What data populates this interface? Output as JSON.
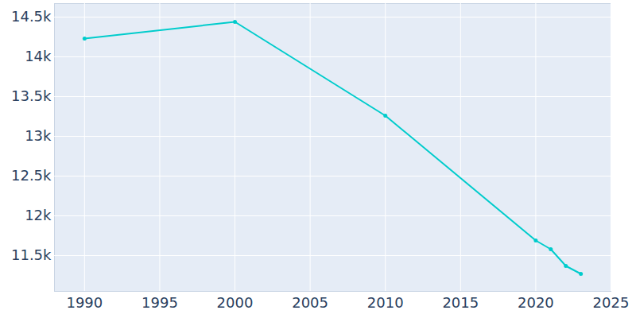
{
  "chart_data": {
    "type": "line",
    "x": [
      1990,
      2000,
      2010,
      2020,
      2021,
      2022,
      2023
    ],
    "values": [
      14230,
      14440,
      13260,
      11690,
      11580,
      11370,
      11270
    ],
    "color": "#00cccc",
    "marker": "circle",
    "xlim": [
      1988,
      2025
    ],
    "xticks": [
      1990,
      1995,
      2000,
      2005,
      2010,
      2015,
      2020,
      2025
    ],
    "ylim": [
      11050,
      14670
    ],
    "yticks": [
      {
        "value": 11500,
        "label": "11.5k"
      },
      {
        "value": 12000,
        "label": "12k"
      },
      {
        "value": 12500,
        "label": "12.5k"
      },
      {
        "value": 13000,
        "label": "13k"
      },
      {
        "value": 13500,
        "label": "13.5k"
      },
      {
        "value": 14000,
        "label": "14k"
      },
      {
        "value": 14500,
        "label": "14.5k"
      }
    ],
    "grid": true
  }
}
